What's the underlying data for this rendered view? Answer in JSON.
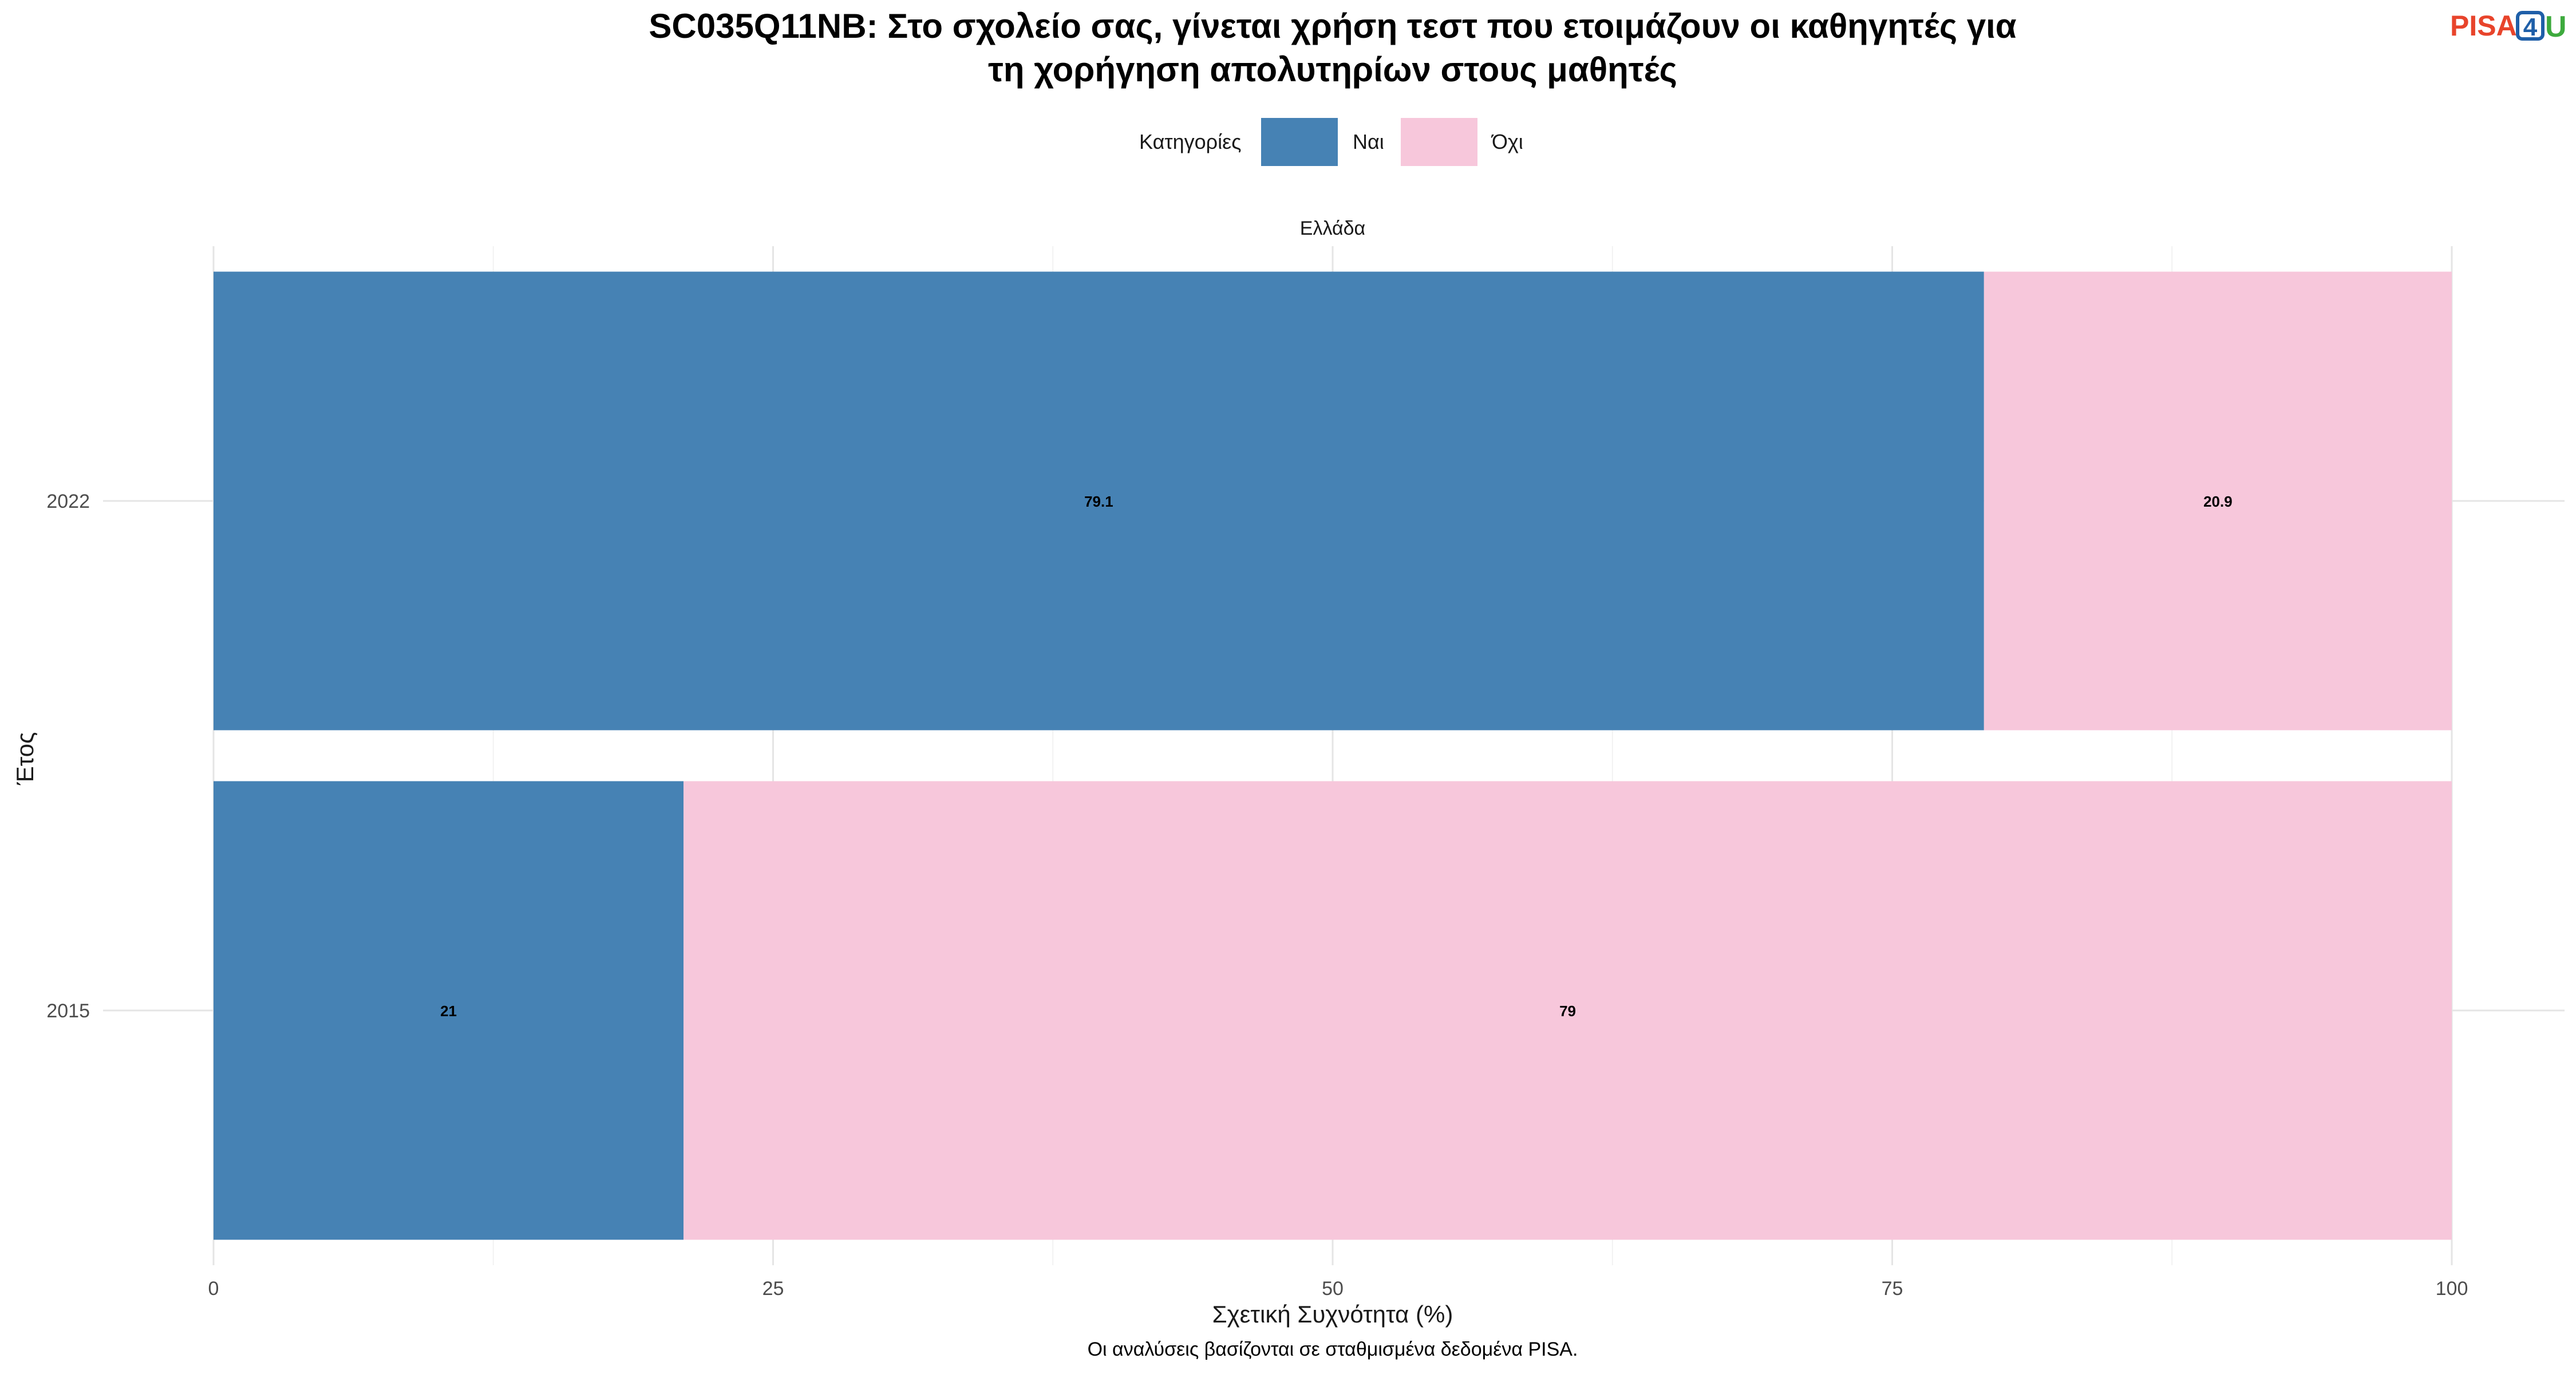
{
  "chart_data": {
    "type": "bar",
    "orientation": "horizontal",
    "stacked": true,
    "title_lines": [
      "SC035Q11NB: Στο σχολείο σας, γίνεται χρήση τεστ που ετοιμάζουν οι καθηγητές για",
      "τη χορήγηση απολυτηρίων στους μαθητές"
    ],
    "facet": "Ελλάδα",
    "legend": {
      "title": "Κατηγορίες",
      "placement": "top"
    },
    "categories": [
      "2022",
      "2015"
    ],
    "series": [
      {
        "name": "Ναι",
        "color": "#4682B4",
        "values": [
          79.1,
          21
        ]
      },
      {
        "name": "Όχι",
        "color": "#F7C7DB",
        "values": [
          20.9,
          79
        ]
      }
    ],
    "xlabel": "Σχετική Συχνότητα (%)",
    "ylabel": "Έτος",
    "xlim": [
      0,
      100
    ],
    "xticks": [
      0,
      25,
      50,
      75,
      100
    ],
    "grid": true,
    "caption": "Οι αναλύσεις βασίζονται σε σταθμισμένα δεδομένα PISA."
  },
  "logo": {
    "part1": "PISA",
    "part2": "4",
    "part3": "U",
    "color1": "#E8442B",
    "color2": "#1F5FA8",
    "color3": "#3DAA3D"
  }
}
